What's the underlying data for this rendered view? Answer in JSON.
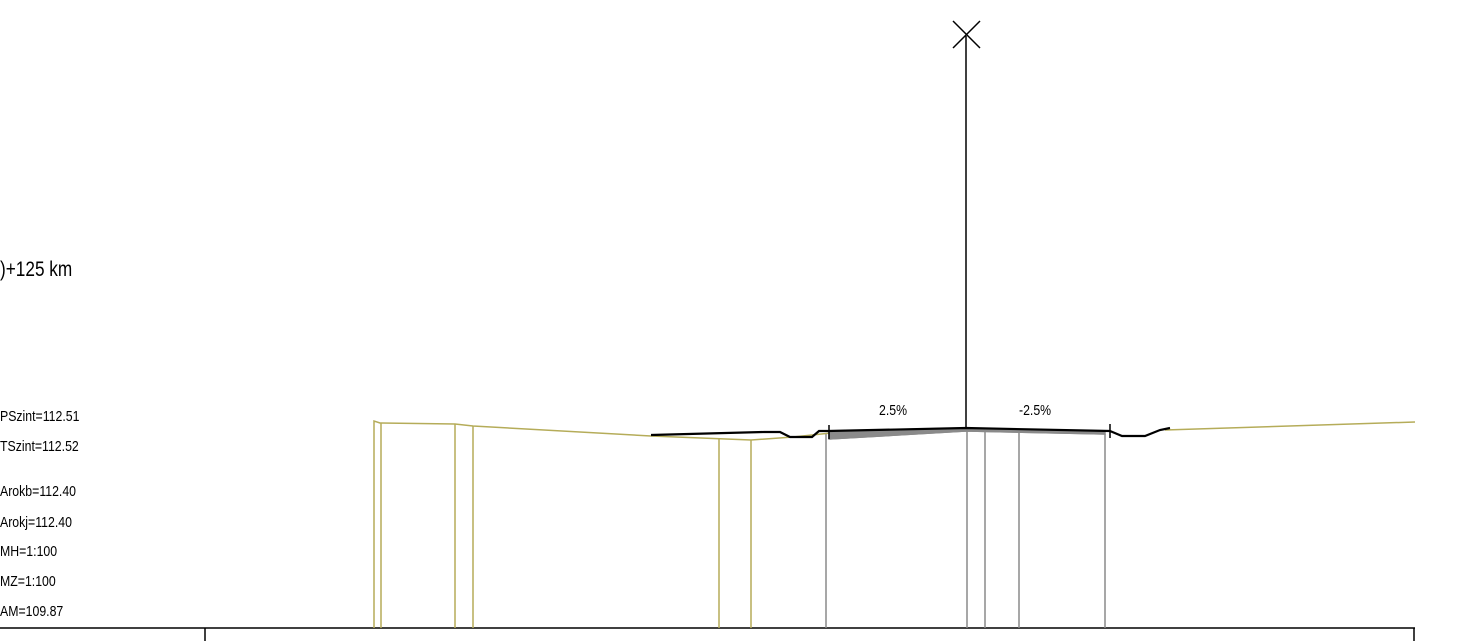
{
  "station_label": ")+125 km",
  "params": [
    "PSzint=112.51",
    "TSzint=112.52",
    "Arokb=112.40",
    "Arokj=112.40",
    "MH=1:100",
    "MZ=1:100",
    "AM=109.87"
  ],
  "slopes": {
    "left": "2.5%",
    "right": "-2.5%"
  },
  "colors": {
    "terrain": "#b5ac59",
    "road": "#000000",
    "structure": "#8a8a8a"
  }
}
